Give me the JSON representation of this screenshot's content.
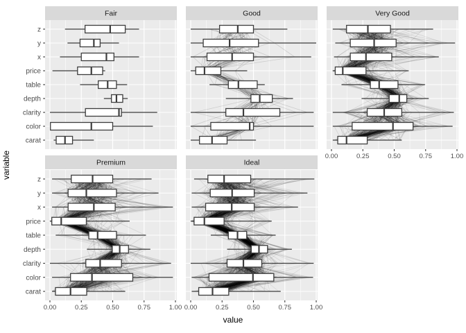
{
  "figure": {
    "x_axis_title": "value",
    "y_axis_title": "variable",
    "x_tick_labels": [
      "0.00",
      "0.25",
      "0.50",
      "0.75",
      "1.00"
    ],
    "x_tick_values": [
      0,
      0.25,
      0.5,
      0.75,
      1
    ],
    "variables_top_to_bottom": [
      "z",
      "y",
      "x",
      "price",
      "table",
      "depth",
      "clarity",
      "color",
      "carat"
    ],
    "colors": {
      "panel_bg": "#EBEBEB",
      "strip_bg": "#D9D9D9",
      "grid": "#FFFFFF",
      "box_stroke": "#3D3D3D",
      "box_fill": "#FFFFFF",
      "parcoord_line": "#000000",
      "tick_mark": "#333333",
      "tick_text": "#4D4D4D",
      "strip_text": "#1A1A1A",
      "title_text": "#000000"
    }
  },
  "chart_data": {
    "type": "boxplot",
    "orientation": "horizontal",
    "facet_by": "cut",
    "value_axis_range": [
      0,
      1
    ],
    "box_format": "[whisker_low, q1, median, q3, whisker_high] on normalized 0-1 value scale",
    "grid": {
      "major_x": [
        0,
        0.25,
        0.5,
        0.75,
        1
      ],
      "minor_x": [
        0.125,
        0.375,
        0.625,
        0.875
      ]
    },
    "facets": [
      {
        "label": "Fair",
        "row": 0,
        "col": 0,
        "parcoord": {
          "count": 0,
          "opacity": 0
        },
        "boxes": {
          "z": [
            0.12,
            0.28,
            0.48,
            0.6,
            0.71
          ],
          "y": [
            0.14,
            0.24,
            0.35,
            0.4,
            0.55
          ],
          "x": [
            0.08,
            0.25,
            0.45,
            0.51,
            0.71
          ],
          "price": [
            0.02,
            0.22,
            0.33,
            0.42,
            0.44
          ],
          "table": [
            0.24,
            0.385,
            0.46,
            0.53,
            0.615
          ],
          "depth": [
            0.43,
            0.49,
            0.53,
            0.58,
            0.62
          ],
          "clarity": [
            0.0,
            0.283,
            0.55,
            0.57,
            0.855
          ],
          "color": [
            0.004,
            0.004,
            0.33,
            0.5,
            0.82
          ],
          "carat": [
            0.03,
            0.05,
            0.12,
            0.18,
            0.35
          ]
        }
      },
      {
        "label": "Good",
        "row": 0,
        "col": 1,
        "parcoord": {
          "count": 48,
          "opacity": 0.13
        },
        "boxes": {
          "z": [
            0.0,
            0.23,
            0.375,
            0.5,
            0.77
          ],
          "y": [
            0.0,
            0.1,
            0.31,
            0.54,
            1.0
          ],
          "x": [
            0.0,
            0.13,
            0.33,
            0.5,
            0.96
          ],
          "price": [
            0.0,
            0.04,
            0.11,
            0.24,
            0.45
          ],
          "table": [
            0.15,
            0.3,
            0.38,
            0.53,
            0.59
          ],
          "depth": [
            0.28,
            0.48,
            0.55,
            0.65,
            0.815
          ],
          "clarity": [
            0.0,
            0.28,
            0.42,
            0.71,
            0.98
          ],
          "color": [
            0.0,
            0.16,
            0.47,
            0.5,
            0.98
          ],
          "carat": [
            0.0,
            0.07,
            0.17,
            0.29,
            0.52
          ]
        }
      },
      {
        "label": "Very Good",
        "row": 0,
        "col": 2,
        "parcoord": {
          "count": 260,
          "opacity": 0.1
        },
        "boxes": {
          "z": [
            0.01,
            0.12,
            0.29,
            0.47,
            0.81
          ],
          "y": [
            0.03,
            0.15,
            0.34,
            0.515,
            0.985
          ],
          "x": [
            0.02,
            0.15,
            0.275,
            0.48,
            0.855
          ],
          "price": [
            0.01,
            0.03,
            0.09,
            0.275,
            0.615
          ],
          "table": [
            0.08,
            0.31,
            0.38,
            0.53,
            0.745
          ],
          "depth": [
            0.24,
            0.46,
            0.54,
            0.6,
            0.775
          ],
          "clarity": [
            0.01,
            0.285,
            0.42,
            0.56,
            0.975
          ],
          "color": [
            0.01,
            0.165,
            0.49,
            0.65,
            0.965
          ],
          "carat": [
            0.01,
            0.05,
            0.12,
            0.285,
            0.56
          ]
        }
      },
      {
        "label": "Premium",
        "row": 1,
        "col": 0,
        "parcoord": {
          "count": 270,
          "opacity": 0.1
        },
        "boxes": {
          "z": [
            0.017,
            0.17,
            0.34,
            0.5,
            0.81
          ],
          "y": [
            0.017,
            0.145,
            0.29,
            0.53,
            0.865
          ],
          "x": [
            0.017,
            0.145,
            0.35,
            0.52,
            0.98
          ],
          "price": [
            0.0,
            0.015,
            0.09,
            0.29,
            0.635
          ],
          "table": [
            0.046,
            0.31,
            0.38,
            0.53,
            0.765
          ],
          "depth": [
            0.295,
            0.497,
            0.556,
            0.626,
            0.8
          ],
          "clarity": [
            0.0,
            0.286,
            0.4,
            0.57,
            0.965
          ],
          "color": [
            0.017,
            0.164,
            0.335,
            0.66,
            0.98
          ],
          "carat": [
            0.017,
            0.044,
            0.164,
            0.293,
            0.6
          ]
        }
      },
      {
        "label": "Ideal",
        "row": 1,
        "col": 1,
        "parcoord": {
          "count": 400,
          "opacity": 0.09
        },
        "boxes": {
          "z": [
            0.027,
            0.137,
            0.266,
            0.478,
            0.985
          ],
          "y": [
            0.008,
            0.156,
            0.33,
            0.506,
            0.93
          ],
          "x": [
            0.008,
            0.119,
            0.327,
            0.506,
            0.855
          ],
          "price": [
            0.0,
            0.027,
            0.109,
            0.266,
            0.645
          ],
          "table": [
            0.16,
            0.3,
            0.373,
            0.446,
            0.677
          ],
          "depth": [
            0.29,
            0.483,
            0.544,
            0.612,
            0.806
          ],
          "clarity": [
            0.0,
            0.29,
            0.42,
            0.566,
            0.98
          ],
          "color": [
            0.008,
            0.146,
            0.496,
            0.662,
            0.975
          ],
          "carat": [
            0.008,
            0.064,
            0.174,
            0.303,
            0.717
          ]
        }
      }
    ]
  }
}
